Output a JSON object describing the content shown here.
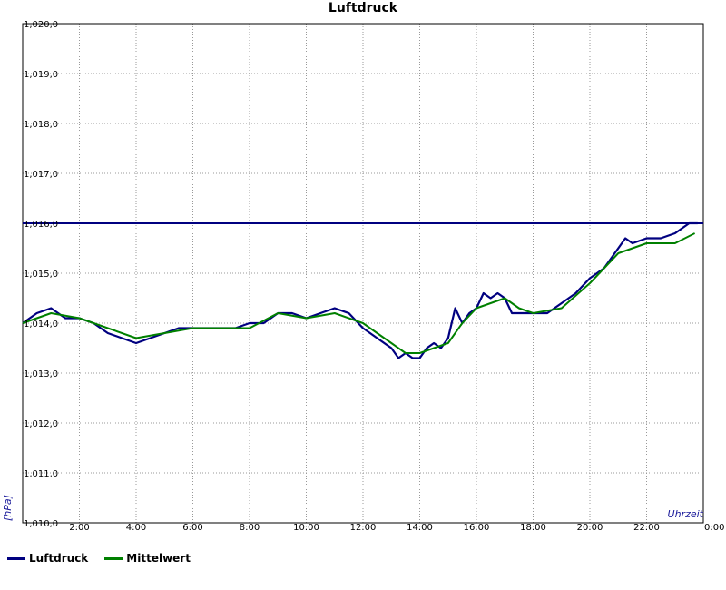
{
  "chart_data": {
    "type": "line",
    "title": "Luftdruck",
    "ylabel": "[hPa]",
    "xlabel": "Uhrzeit",
    "ylim": [
      1010.0,
      1020.0
    ],
    "xlim": [
      0,
      24
    ],
    "y_ticks": [
      1010.0,
      1011.0,
      1012.0,
      1013.0,
      1014.0,
      1015.0,
      1016.0,
      1017.0,
      1018.0,
      1019.0,
      1020.0
    ],
    "y_tick_labels": [
      "1,010,0",
      "1,011,0",
      "1,012,0",
      "1,013,0",
      "1,014,0",
      "1,015,0",
      "1,016,0",
      "1,017,0",
      "1,018,0",
      "1,019,0",
      "1,020,0"
    ],
    "x_ticks": [
      2,
      4,
      6,
      8,
      10,
      12,
      14,
      16,
      18,
      20,
      22,
      24
    ],
    "x_tick_labels": [
      "2:00",
      "4:00",
      "6:00",
      "8:00",
      "10:00",
      "12:00",
      "14:00",
      "16:00",
      "18:00",
      "20:00",
      "22:00",
      "0:00"
    ],
    "grid": true,
    "legend_position": "bottom-left",
    "reference_line": {
      "y": 1016.0,
      "color": "#000080"
    },
    "series": [
      {
        "name": "Luftdruck",
        "color": "#000080",
        "x": [
          0,
          0.5,
          1.0,
          1.5,
          2.0,
          2.5,
          3.0,
          3.5,
          4.0,
          4.5,
          5.0,
          5.5,
          6.0,
          6.5,
          7.0,
          7.5,
          8.0,
          8.5,
          9.0,
          9.5,
          10.0,
          10.5,
          11.0,
          11.5,
          12.0,
          12.5,
          13.0,
          13.25,
          13.5,
          13.75,
          14.0,
          14.25,
          14.5,
          14.75,
          15.0,
          15.25,
          15.5,
          15.75,
          16.0,
          16.25,
          16.5,
          16.75,
          17.0,
          17.25,
          17.5,
          18.0,
          18.5,
          19.0,
          19.5,
          20.0,
          20.5,
          21.0,
          21.25,
          21.5,
          22.0,
          22.5,
          23.0,
          23.5,
          23.8
        ],
        "y": [
          1014.0,
          1014.2,
          1014.3,
          1014.1,
          1014.1,
          1014.0,
          1013.8,
          1013.7,
          1013.6,
          1013.7,
          1013.8,
          1013.9,
          1013.9,
          1013.9,
          1013.9,
          1013.9,
          1014.0,
          1014.0,
          1014.2,
          1014.2,
          1014.1,
          1014.2,
          1014.3,
          1014.2,
          1013.9,
          1013.7,
          1013.5,
          1013.3,
          1013.4,
          1013.3,
          1013.3,
          1013.5,
          1013.6,
          1013.5,
          1013.7,
          1014.3,
          1014.0,
          1014.2,
          1014.3,
          1014.6,
          1014.5,
          1014.6,
          1014.5,
          1014.2,
          1014.2,
          1014.2,
          1014.2,
          1014.4,
          1014.6,
          1014.9,
          1015.1,
          1015.5,
          1015.7,
          1015.6,
          1015.7,
          1015.7,
          1015.8,
          1016.0,
          1016.0
        ]
      },
      {
        "name": "Mittelwert",
        "color": "#008000",
        "x": [
          0,
          1,
          2,
          3,
          4,
          5,
          6,
          7,
          8,
          9,
          10,
          11,
          12,
          12.5,
          13,
          13.5,
          14,
          14.5,
          15,
          15.5,
          16,
          17,
          17.5,
          18,
          19,
          20,
          21,
          22,
          23,
          23.7
        ],
        "y": [
          1014.0,
          1014.2,
          1014.1,
          1013.9,
          1013.7,
          1013.8,
          1013.9,
          1013.9,
          1013.9,
          1014.2,
          1014.1,
          1014.2,
          1014.0,
          1013.8,
          1013.6,
          1013.4,
          1013.4,
          1013.5,
          1013.6,
          1014.0,
          1014.3,
          1014.5,
          1014.3,
          1014.2,
          1014.3,
          1014.8,
          1015.4,
          1015.6,
          1015.6,
          1015.8
        ]
      }
    ]
  }
}
